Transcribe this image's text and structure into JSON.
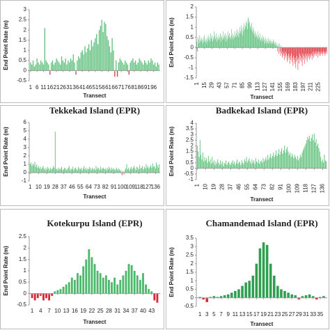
{
  "chart_data": [
    {
      "type": "bar",
      "y_label": "End Point Rate (m)",
      "x_label": "Transect",
      "color": "#5cbf7a",
      "negative_color": "#e0303a",
      "ylim": [
        -0.5,
        3
      ],
      "yticks": [
        -0.5,
        0,
        0.5,
        1,
        1.5,
        2,
        2.5,
        3
      ],
      "xlim": [
        0,
        101
      ],
      "xticks": [
        1,
        6,
        11,
        16,
        21,
        26,
        31,
        36,
        41,
        46,
        51,
        56,
        61,
        66,
        71,
        76,
        81,
        86,
        91,
        96
      ],
      "values": [
        0.4,
        0.3,
        0.5,
        0.2,
        0.3,
        0.6,
        0.4,
        0.3,
        0.5,
        0.4,
        0.3,
        2.1,
        0.5,
        0.4,
        0.3,
        -0.2,
        0.4,
        0.5,
        0.3,
        0.4,
        0.6,
        0.5,
        0.4,
        0.3,
        0.7,
        0.5,
        0.4,
        0.6,
        0.3,
        0.5,
        0.4,
        0.6,
        0.5,
        0.8,
        0.4,
        -0.2,
        0.5,
        0.7,
        0.6,
        0.9,
        1.0,
        0.8,
        1.2,
        0.9,
        1.1,
        1.3,
        1.0,
        1.5,
        1.2,
        1.4,
        1.6,
        1.8,
        1.3,
        2.0,
        2.2,
        2.5,
        1.9,
        2.4,
        2.3,
        1.7,
        1.5,
        1.2,
        0.9,
        1.6,
        1.0,
        -0.3,
        0.5,
        -0.3,
        0.4,
        0.6,
        0.5,
        0.4,
        0.3,
        0.5,
        0.4,
        0.3,
        -0.2,
        0.4,
        0.5,
        0.6,
        0.4,
        0.5,
        0.3,
        0.4,
        0.6,
        0.5,
        0.4,
        0.3,
        0.5,
        0.4,
        0.3,
        0.5,
        0.4,
        0.6,
        0.5,
        0.3,
        0.4,
        0.2,
        0.4,
        0.3
      ]
    },
    {
      "type": "bar",
      "y_label": "End Point Rate (m)",
      "x_label": "Transect",
      "color": "#5cbf7a",
      "negative_color": "#e0303a",
      "ylim": [
        -1.5,
        2
      ],
      "yticks": [
        -1.5,
        -1,
        -0.5,
        0,
        0.5,
        1,
        1.5,
        2
      ],
      "xlim": [
        0,
        241
      ],
      "xticks": [
        1,
        15,
        29,
        43,
        57,
        71,
        85,
        99,
        113,
        127,
        141,
        155,
        169,
        183,
        197,
        211,
        225
      ],
      "values": [
        0.3,
        -0.2,
        0.5,
        0.4,
        0.2,
        0.6,
        0.3,
        0.4,
        0.5,
        0.3,
        0.4,
        0.2,
        0.5,
        0.3,
        0.6,
        0.4,
        0.3,
        0.2,
        0.4,
        0.5,
        0.3,
        0.6,
        0.4,
        0.5,
        0.3,
        0.7,
        0.4,
        0.5,
        0.6,
        0.3,
        0.4,
        0.5,
        0.8,
        0.6,
        0.4,
        0.5,
        0.7,
        0.3,
        0.5,
        0.4,
        0.6,
        0.4,
        0.5,
        0.7,
        0.3,
        0.6,
        0.5,
        0.4,
        0.8,
        0.5,
        0.4,
        0.6,
        0.7,
        0.5,
        0.3,
        0.6,
        0.4,
        0.8,
        0.5,
        0.6,
        0.7,
        0.5,
        0.4,
        0.6,
        0.9,
        0.5,
        0.7,
        0.4,
        0.6,
        0.5,
        0.8,
        0.6,
        0.5,
        0.7,
        0.9,
        0.6,
        0.8,
        0.5,
        0.7,
        1.0,
        0.8,
        0.7,
        1.1,
        0.9,
        0.6,
        1.0,
        0.8,
        1.2,
        0.9,
        1.1,
        1.0,
        1.3,
        1.2,
        0.9,
        1.4,
        1.5,
        1.2,
        1.3,
        1.0,
        1.1,
        0.9,
        1.2,
        0.8,
        1.0,
        0.7,
        0.9,
        0.6,
        0.8,
        0.5,
        0.7,
        0.6,
        0.5,
        0.8,
        0.4,
        0.6,
        0.5,
        0.7,
        0.4,
        0.3,
        0.5,
        0.4,
        0.6,
        0.3,
        0.5,
        0.4,
        0.2,
        0.5,
        0.3,
        0.4,
        0.2,
        0.3,
        0.5,
        0.2,
        0.4,
        0.3,
        0.2,
        0.4,
        0.3,
        0.2,
        0.3,
        0.2,
        0.4,
        0.3,
        0.2,
        0.1,
        0.3,
        0.2,
        0.1,
        -0.2,
        0.2,
        0.1,
        -0.3,
        0.2,
        -0.2,
        -0.4,
        0.1,
        -0.3,
        -0.5,
        -0.2,
        -0.4,
        -0.3,
        -0.6,
        -0.4,
        -0.2,
        -0.5,
        -0.3,
        -0.7,
        -0.4,
        -0.6,
        -0.3,
        -0.5,
        -0.8,
        -0.4,
        -0.6,
        -0.3,
        -0.7,
        -0.5,
        -0.9,
        -0.4,
        -0.6,
        -0.8,
        -0.5,
        -1.0,
        -0.7,
        -0.4,
        -0.6,
        -1.1,
        -0.5,
        -0.8,
        -0.3,
        -0.6,
        -0.4,
        -0.7,
        -0.5,
        -0.9,
        -0.3,
        -0.6,
        -0.4,
        -0.8,
        -0.5,
        -0.3,
        -0.6,
        -0.4,
        -0.7,
        -0.3,
        -0.5,
        -0.4,
        -0.6,
        -0.3,
        -0.5,
        -0.4,
        -0.3,
        -0.6,
        -0.4,
        -0.2,
        -0.5,
        -0.3,
        -0.4,
        -0.2,
        -0.3,
        -0.4,
        -0.2,
        -0.3,
        -0.5,
        -0.2,
        -0.4,
        -0.3,
        -0.2,
        -0.4,
        -0.3,
        -0.2,
        -0.3,
        -0.4,
        -0.2,
        -0.3,
        -0.2,
        -0.4,
        -0.3,
        -0.2,
        -0.3
      ]
    },
    {
      "type": "bar",
      "title": "Tekkekad Island (EPR)",
      "y_label": "End Point Rate (m)",
      "x_label": "Transect",
      "color": "#5cbf7a",
      "negative_color": "#e0303a",
      "ylim": [
        -1,
        6
      ],
      "yticks": [
        -1,
        0,
        1,
        2,
        3,
        4,
        5,
        6
      ],
      "xlim": [
        0,
        141
      ],
      "xticks": [
        1,
        10,
        19,
        28,
        37,
        46,
        55,
        64,
        73,
        82,
        91,
        100,
        109,
        118,
        127,
        136
      ],
      "values": [
        1.0,
        1.2,
        0.8,
        1.1,
        0.9,
        1.3,
        0.7,
        1.0,
        0.6,
        0.8,
        0.5,
        0.7,
        0.4,
        0.6,
        0.8,
        0.5,
        0.3,
        0.6,
        0.4,
        0.7,
        0.5,
        0.3,
        0.6,
        0.4,
        0.5,
        0.8,
        0.6,
        4.9,
        0.4,
        0.5,
        0.3,
        0.6,
        0.4,
        0.5,
        0.7,
        0.3,
        0.4,
        0.6,
        0.5,
        0.3,
        0.4,
        0.6,
        0.8,
        0.3,
        0.5,
        0.4,
        0.7,
        0.3,
        0.5,
        0.6,
        0.4,
        0.3,
        0.7,
        0.5,
        0.4,
        0.6,
        0.3,
        0.5,
        0.8,
        0.4,
        0.6,
        0.3,
        0.5,
        0.4,
        0.7,
        0.5,
        0.3,
        0.6,
        0.4,
        0.5,
        0.3,
        0.8,
        0.4,
        0.6,
        0.5,
        0.3,
        0.7,
        0.4,
        0.5,
        0.6,
        0.4,
        0.5,
        0.3,
        0.6,
        0.4,
        0.7,
        0.5,
        0.3,
        0.6,
        0.4,
        0.5,
        0.3,
        0.4,
        0.6,
        0.3,
        0.5,
        0.4,
        0.2,
        0.3,
        -0.3,
        0.2,
        -0.2,
        0.3,
        0.5,
        1.0,
        0.4,
        0.6,
        0.3,
        0.5,
        0.7,
        0.4,
        0.6,
        0.8,
        0.5,
        0.3,
        0.7,
        0.6,
        0.4,
        0.9,
        0.5,
        0.6,
        0.8,
        0.4,
        0.7,
        0.5,
        1.0,
        0.6,
        0.8,
        0.5,
        0.7,
        0.9,
        0.6,
        1.1,
        0.7,
        0.8,
        0.5,
        1.2,
        0.9,
        0.6,
        1.0
      ]
    },
    {
      "type": "bar",
      "title": "Badkekad Island (EPR)",
      "y_label": "End Point Rate (m)",
      "x_label": "Transect",
      "color": "#5cbf7a",
      "negative_color": "#e0303a",
      "ylim": [
        -1,
        4
      ],
      "yticks": [
        -1,
        -0.5,
        0,
        0.5,
        1,
        1.5,
        2,
        2.5,
        3,
        3.5,
        4
      ],
      "xlim": [
        0,
        141
      ],
      "xticks": [
        1,
        10,
        19,
        28,
        37,
        46,
        55,
        64,
        73,
        82,
        91,
        100,
        109,
        118,
        127,
        136
      ],
      "values": [
        2.0,
        1.5,
        1.0,
        2.5,
        1.2,
        0.8,
        1.4,
        0.6,
        1.0,
        0.7,
        0.9,
        0.5,
        1.1,
        0.6,
        0.8,
        0.4,
        1.0,
        0.5,
        0.7,
        0.3,
        0.6,
        0.4,
        0.8,
        0.5,
        0.3,
        0.7,
        0.4,
        0.6,
        0.2,
        0.5,
        0.4,
        0.7,
        0.3,
        0.5,
        0.6,
        0.4,
        0.3,
        0.5,
        0.7,
        0.4,
        0.6,
        0.3,
        0.5,
        0.8,
        0.4,
        0.6,
        0.5,
        0.3,
        0.7,
        0.5,
        0.4,
        0.8,
        0.6,
        1.0,
        0.5,
        0.7,
        0.9,
        0.6,
        0.4,
        0.8,
        0.5,
        0.7,
        0.4,
        0.9,
        0.6,
        0.5,
        0.8,
        0.4,
        0.6,
        0.7,
        0.5,
        0.9,
        0.6,
        0.8,
        1.0,
        0.7,
        1.2,
        0.8,
        1.0,
        1.3,
        0.9,
        1.1,
        1.4,
        1.0,
        1.2,
        1.6,
        1.1,
        1.3,
        1.7,
        1.2,
        1.5,
        1.8,
        1.3,
        1.6,
        2.0,
        1.4,
        1.7,
        1.9,
        1.5,
        1.2,
        1.4,
        1.0,
        1.3,
        1.1,
        0.9,
        1.2,
        1.0,
        0.8,
        1.1,
        0.7,
        0.9,
        1.2,
        1.0,
        1.4,
        1.6,
        1.8,
        2.0,
        2.2,
        2.5,
        2.8,
        2.6,
        2.9,
        2.4,
        2.7,
        3.0,
        2.5,
        3.1,
        2.3,
        2.6,
        2.0,
        2.2,
        1.8,
        1.5,
        1.0,
        0.6,
        0.8,
        0.5,
        1.2,
        0.7,
        0.6
      ]
    },
    {
      "type": "bar",
      "title": "Kotekurpu Island (EPR)",
      "y_label": "End Point Rate (m)",
      "x_label": "Transect",
      "color": "#4cb86c",
      "negative_color": "#d8283a",
      "ylim": [
        -0.5,
        2.5
      ],
      "yticks": [
        -0.5,
        0,
        0.5,
        1,
        1.5,
        2,
        2.5
      ],
      "xlim": [
        0,
        46
      ],
      "xticks": [
        1,
        4,
        7,
        10,
        13,
        16,
        19,
        22,
        25,
        28,
        31,
        34,
        37,
        40,
        43
      ],
      "values": [
        -0.2,
        -0.3,
        -0.2,
        -0.1,
        -0.3,
        -0.2,
        -0.3,
        -0.1,
        0.1,
        0.15,
        0.2,
        0.3,
        0.4,
        0.5,
        0.7,
        0.6,
        0.9,
        0.8,
        1.2,
        1.5,
        1.95,
        1.6,
        1.3,
        1.0,
        0.9,
        0.7,
        0.8,
        0.6,
        0.5,
        0.7,
        0.4,
        0.6,
        0.8,
        1.0,
        1.3,
        1.25,
        1.0,
        0.8,
        0.6,
        0.9,
        0.4,
        0.2,
        0.1,
        -0.3,
        -0.4
      ]
    },
    {
      "type": "bar",
      "title": "Chamandemad Island (EPR)",
      "y_label": "End Point Rate (m)",
      "x_label": "Transect",
      "color": "#2f9e50",
      "negative_color": "#d8283a",
      "ylim": [
        -0.5,
        3.5
      ],
      "yticks": [
        -0.5,
        0,
        0.5,
        1,
        1.5,
        2,
        2.5,
        3,
        3.5
      ],
      "xlim": [
        0,
        37
      ],
      "xticks": [
        1,
        3,
        5,
        7,
        9,
        11,
        13,
        15,
        17,
        19,
        21,
        23,
        25,
        27,
        29,
        31,
        33,
        35
      ],
      "values": [
        0.05,
        -0.1,
        -0.25,
        0.05,
        0.1,
        0.05,
        0.1,
        0.15,
        0.2,
        0.3,
        0.4,
        0.5,
        0.7,
        0.9,
        1.0,
        1.3,
        2.0,
        2.9,
        3.25,
        3.1,
        2.0,
        1.3,
        0.7,
        0.5,
        0.4,
        0.3,
        0.2,
        0.15,
        -0.1,
        0.1,
        0.15,
        0.2,
        0.1,
        -0.1,
        0.05,
        0.1
      ]
    }
  ]
}
